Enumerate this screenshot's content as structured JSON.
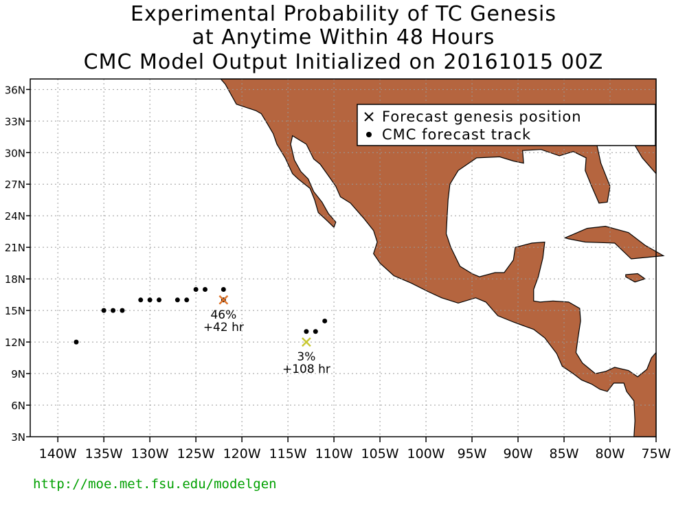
{
  "title": {
    "line1": "Experimental Probability of TC Genesis",
    "line2": "at Anytime Within 48 Hours",
    "line3": "CMC Model Output Initialized on 20161015 00Z"
  },
  "map": {
    "lon_range": [
      -143,
      -75
    ],
    "lat_range": [
      3,
      37
    ],
    "lon_ticks": [
      -140,
      -135,
      -130,
      -125,
      -120,
      -115,
      -110,
      -105,
      -100,
      -95,
      -90,
      -85,
      -80,
      -75
    ],
    "lat_ticks": [
      3,
      6,
      9,
      12,
      15,
      18,
      21,
      24,
      27,
      30,
      33,
      36
    ],
    "lon_tick_labels": [
      "140W",
      "135W",
      "130W",
      "125W",
      "120W",
      "115W",
      "110W",
      "105W",
      "100W",
      "95W",
      "90W",
      "85W",
      "80W",
      "75W"
    ],
    "lat_tick_labels": [
      "3N",
      "6N",
      "9N",
      "12N",
      "15N",
      "18N",
      "21N",
      "24N",
      "27N",
      "30N",
      "33N",
      "36N"
    ],
    "grid": true,
    "land_color": "#b5653f",
    "ocean_color": "#ffffff"
  },
  "legend": {
    "placement": "top-right",
    "items": [
      {
        "symbol": "x-icon",
        "label": "Forecast genesis position"
      },
      {
        "symbol": "dot-icon",
        "label": "CMC forecast track"
      }
    ]
  },
  "genesis_points": [
    {
      "lon": -122,
      "lat": 16,
      "probability": "46%",
      "lead_time": "+42 hr",
      "color": "#e0742a"
    },
    {
      "lon": -113,
      "lat": 12,
      "probability": "3%",
      "lead_time": "+108 hr",
      "color": "#c8c832"
    }
  ],
  "track_points": [
    [
      -138,
      12
    ],
    [
      -135,
      15
    ],
    [
      -134,
      15
    ],
    [
      -133,
      15
    ],
    [
      -131,
      16
    ],
    [
      -130,
      16
    ],
    [
      -129,
      16
    ],
    [
      -127,
      16
    ],
    [
      -126,
      16
    ],
    [
      -125,
      17
    ],
    [
      -124,
      17
    ],
    [
      -122,
      17
    ],
    [
      -122,
      16
    ],
    [
      -113,
      13
    ],
    [
      -112,
      13
    ],
    [
      -111,
      14
    ]
  ],
  "footer": {
    "url": "http://moe.met.fsu.edu/modelgen"
  }
}
